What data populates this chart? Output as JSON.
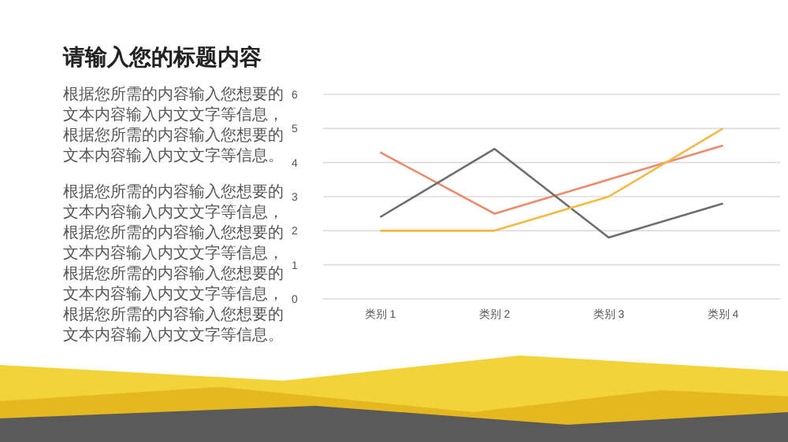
{
  "chart_data": {
    "type": "line",
    "title": "请输入您的标题内容",
    "annotations": [
      "根据您所需的内容输入您想要的文本内容输入内文文字等信息，根据您所需的内容输入您想要的文本内容输入内文文字等信息。",
      "根据您所需的内容输入您想要的文本内容输入内文文字等信息，根据您所需的内容输入您想要的文本内容输入内文文字等信息，根据您所需的内容输入您想要的文本内容输入内文文字等信息，根据您所需的内容输入您想要的文本内容输入内文文字等信息。"
    ],
    "categories": [
      "类别 1",
      "类别 2",
      "类别 3",
      "类别 4"
    ],
    "series": [
      {
        "color": "#ee8a6a",
        "values": [
          4.3,
          2.5,
          3.5,
          4.5
        ]
      },
      {
        "color": "#6e6e6e",
        "values": [
          2.4,
          4.4,
          1.8,
          2.8
        ]
      },
      {
        "color": "#f5b942",
        "values": [
          2,
          2,
          3,
          5
        ]
      }
    ],
    "ylim": [
      0,
      6
    ],
    "yticks": [
      0,
      1,
      2,
      3,
      4,
      5,
      6
    ],
    "grid": "y"
  }
}
